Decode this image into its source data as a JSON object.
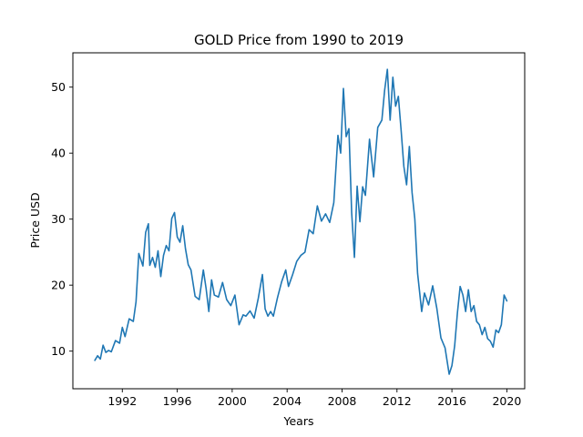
{
  "chart_data": {
    "type": "line",
    "title": "GOLD Price from 1990 to 2019",
    "xlabel": "Years",
    "ylabel": "Price USD",
    "xlim": [
      1988.4,
      2021.3
    ],
    "ylim": [
      4.3,
      55.2
    ],
    "x_ticks": [
      1992,
      1996,
      2000,
      2004,
      2008,
      2012,
      2016,
      2020
    ],
    "x_tick_labels": [
      "1992",
      "1996",
      "2000",
      "2004",
      "2008",
      "2012",
      "2016",
      "2020"
    ],
    "y_ticks": [
      10,
      20,
      30,
      40,
      50
    ],
    "y_tick_labels": [
      "10",
      "20",
      "30",
      "40",
      "50"
    ],
    "grid": false,
    "series": [
      {
        "color": "#1f77b4",
        "x": [
          1990.0,
          1990.2,
          1990.4,
          1990.6,
          1990.8,
          1991.0,
          1991.2,
          1991.5,
          1991.8,
          1992.0,
          1992.2,
          1992.5,
          1992.8,
          1993.0,
          1993.2,
          1993.5,
          1993.7,
          1993.9,
          1994.0,
          1994.2,
          1994.4,
          1994.6,
          1994.8,
          1995.0,
          1995.2,
          1995.4,
          1995.6,
          1995.8,
          1996.0,
          1996.2,
          1996.4,
          1996.6,
          1996.8,
          1997.0,
          1997.3,
          1997.6,
          1997.9,
          1998.1,
          1998.3,
          1998.5,
          1998.7,
          1999.0,
          1999.3,
          1999.6,
          1999.9,
          2000.2,
          2000.5,
          2000.8,
          2001.0,
          2001.3,
          2001.6,
          2001.9,
          2002.2,
          2002.4,
          2002.6,
          2002.8,
          2003.0,
          2003.3,
          2003.6,
          2003.9,
          2004.1,
          2004.4,
          2004.7,
          2005.0,
          2005.3,
          2005.6,
          2005.9,
          2006.2,
          2006.5,
          2006.8,
          2007.1,
          2007.4,
          2007.7,
          2007.9,
          2008.1,
          2008.3,
          2008.5,
          2008.7,
          2008.9,
          2009.1,
          2009.3,
          2009.5,
          2009.7,
          2010.0,
          2010.3,
          2010.6,
          2010.9,
          2011.1,
          2011.3,
          2011.5,
          2011.7,
          2011.9,
          2012.1,
          2012.3,
          2012.5,
          2012.7,
          2012.9,
          2013.1,
          2013.3,
          2013.5,
          2013.8,
          2014.0,
          2014.3,
          2014.6,
          2014.9,
          2015.2,
          2015.5,
          2015.8,
          2016.0,
          2016.2,
          2016.4,
          2016.6,
          2016.8,
          2017.0,
          2017.2,
          2017.4,
          2017.6,
          2017.8,
          2018.0,
          2018.2,
          2018.4,
          2018.6,
          2018.8,
          2019.0,
          2019.2,
          2019.4,
          2019.6,
          2019.8,
          2020.0
        ],
        "y": [
          8.6,
          9.3,
          8.8,
          10.9,
          9.8,
          10.1,
          9.9,
          11.6,
          11.2,
          13.6,
          12.2,
          14.9,
          14.5,
          17.5,
          24.8,
          22.9,
          28.0,
          29.3,
          23.0,
          24.2,
          22.7,
          25.2,
          21.3,
          24.5,
          26.0,
          25.2,
          30.1,
          31.0,
          27.3,
          26.5,
          29.0,
          25.5,
          23.1,
          22.3,
          18.3,
          17.8,
          22.3,
          19.5,
          16.0,
          20.8,
          18.5,
          18.2,
          20.4,
          17.8,
          16.9,
          18.5,
          14.0,
          15.5,
          15.3,
          16.1,
          15.0,
          18.0,
          21.6,
          16.4,
          15.3,
          16.0,
          15.3,
          18.1,
          20.5,
          22.3,
          19.8,
          21.6,
          23.6,
          24.5,
          25.0,
          28.4,
          27.8,
          32.0,
          29.7,
          30.8,
          29.5,
          32.5,
          42.7,
          40.0,
          49.8,
          42.5,
          43.7,
          31.0,
          24.2,
          35.0,
          29.6,
          34.9,
          33.6,
          42.1,
          36.4,
          43.9,
          45.0,
          49.5,
          52.7,
          45.0,
          51.5,
          47.1,
          48.6,
          43.5,
          38.0,
          35.2,
          41.0,
          34.0,
          30.0,
          21.8,
          16.0,
          18.8,
          17.0,
          19.9,
          16.5,
          12.0,
          10.5,
          6.5,
          7.8,
          10.8,
          15.8,
          19.8,
          18.5,
          16.0,
          19.3,
          16.0,
          16.9,
          14.5,
          14.0,
          12.5,
          13.6,
          11.9,
          11.5,
          10.6,
          13.2,
          12.8,
          14.0,
          18.5,
          17.6
        ]
      }
    ]
  }
}
